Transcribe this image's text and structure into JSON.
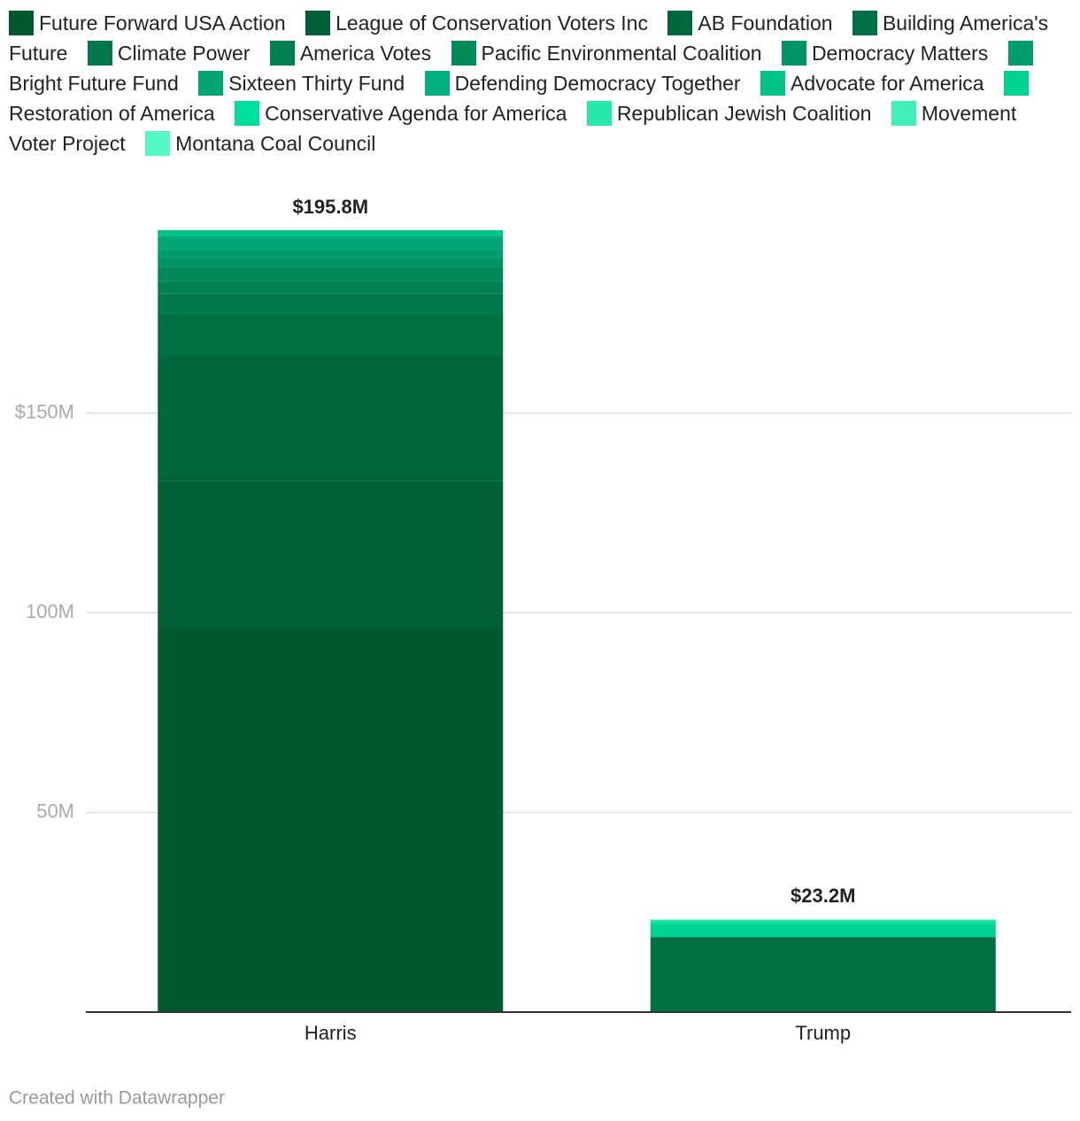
{
  "chart_data": {
    "type": "stacked-bar",
    "categories": [
      "Harris",
      "Trump"
    ],
    "series": [
      {
        "name": "Future Forward USA Action",
        "color": "#00582f",
        "values": [
          96.0,
          null
        ]
      },
      {
        "name": "League of Conservation Voters Inc",
        "color": "#005f36",
        "values": [
          37.0,
          null
        ]
      },
      {
        "name": "AB Foundation",
        "color": "#00673d",
        "values": [
          31.3,
          null
        ]
      },
      {
        "name": "Building America's Future",
        "color": "#007044",
        "values": [
          10.2,
          18.8
        ]
      },
      {
        "name": "Climate Power",
        "color": "#00784b",
        "values": [
          5.5,
          null
        ]
      },
      {
        "name": "America Votes",
        "color": "#008152",
        "values": [
          3.1,
          null
        ]
      },
      {
        "name": "Pacific Environmental Coalition",
        "color": "#008a5a",
        "values": [
          3.5,
          null
        ]
      },
      {
        "name": "Democracy Matters",
        "color": "#009363",
        "values": [
          2.4,
          null
        ]
      },
      {
        "name": "Bright Future Fund",
        "color": "#009c6c",
        "values": [
          2.0,
          null
        ]
      },
      {
        "name": "Sixteen Thirty Fund",
        "color": "#00a574",
        "values": [
          3.0,
          null
        ]
      },
      {
        "name": "Defending Democracy Together",
        "color": "#00b17d",
        "values": [
          0.5,
          null
        ]
      },
      {
        "name": "Advocate for America",
        "color": "#00c386",
        "values": [
          1.3,
          null
        ]
      },
      {
        "name": "Restoration of America",
        "color": "#00d391",
        "values": [
          null,
          3.3
        ]
      },
      {
        "name": "Conservative Agenda for America",
        "color": "#00e09c",
        "values": [
          null,
          0.7
        ]
      },
      {
        "name": "Republican Jewish Coalition",
        "color": "#27e8ab",
        "values": [
          null,
          0.3
        ]
      },
      {
        "name": "Movement Voter Project",
        "color": "#3ff0b6",
        "values": [
          null,
          null
        ]
      },
      {
        "name": "Montana Coal Council",
        "color": "#55f7c2",
        "values": [
          null,
          0.1
        ]
      }
    ],
    "totals": [
      195.8,
      23.2
    ],
    "value_labels": [
      "$195.8M",
      "$23.2M"
    ],
    "ylim": [
      0,
      200
    ],
    "yticks": [
      {
        "value": 50,
        "label": "50M"
      },
      {
        "value": 100,
        "label": "100M"
      },
      {
        "value": 150,
        "label": "$150M"
      }
    ],
    "grid": true,
    "footer": "Created with Datawrapper"
  }
}
